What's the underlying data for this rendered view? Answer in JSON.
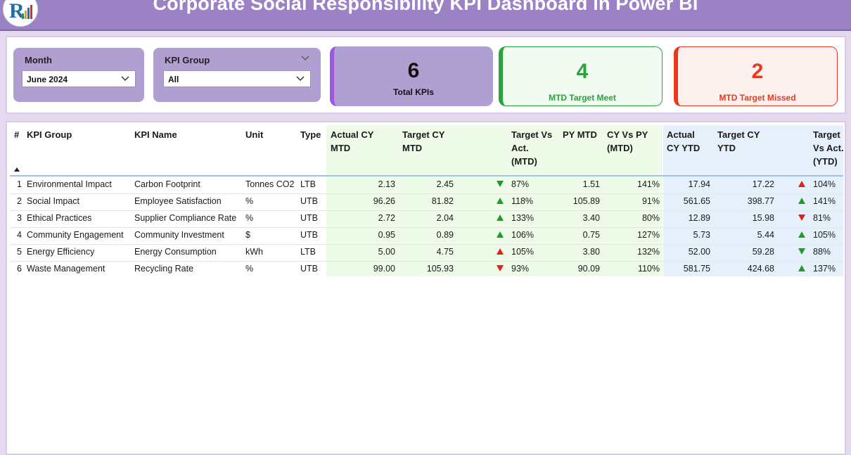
{
  "header": {
    "title": "Corporate Social Responsibility KPI Dashboard in Power BI",
    "logo_icon": "chart-logo-icon"
  },
  "slicers": {
    "month": {
      "label": "Month",
      "value": "June 2024"
    },
    "kpi_group": {
      "label": "KPI Group",
      "value": "All"
    }
  },
  "cards": {
    "total": {
      "value": "6",
      "label": "Total KPIs",
      "color": "#b09fd1"
    },
    "met": {
      "value": "4",
      "label": "MTD Target Meet",
      "color": "#2aa33a"
    },
    "missed": {
      "value": "2",
      "label": "MTD Target Missed",
      "color": "#e8391f"
    }
  },
  "table": {
    "headers": {
      "num": "#",
      "kpi_group": "KPI Group",
      "kpi_name": "KPI Name",
      "unit": "Unit",
      "type": "Type",
      "actual_mtd": [
        "Actual CY",
        "MTD"
      ],
      "target_mtd": [
        "Target CY",
        "MTD"
      ],
      "tva_mtd": [
        "Target Vs",
        "Act.",
        "(MTD)"
      ],
      "py_mtd": "PY MTD",
      "cy_vs_py": [
        "CY Vs PY",
        "(MTD)"
      ],
      "actual_ytd": [
        "Actual",
        "CY YTD"
      ],
      "target_ytd": [
        "Target CY",
        "YTD"
      ],
      "tva_ytd": [
        "Target",
        "Vs Act.",
        "(YTD)"
      ]
    },
    "rows": [
      {
        "num": "1",
        "group": "Environmental Impact",
        "name": "Carbon Footprint",
        "unit": "Tonnes CO2",
        "type": "LTB",
        "actual_mtd": "2.13",
        "target_mtd": "2.45",
        "mtd_ind": "down",
        "mtd_ind_color": "green",
        "tva_mtd": "87%",
        "py_mtd": "1.51",
        "cy_vs_py": "141%",
        "actual_ytd": "17.94",
        "target_ytd": "17.22",
        "ytd_ind": "up",
        "ytd_ind_color": "red",
        "tva_ytd": "104%"
      },
      {
        "num": "2",
        "group": "Social Impact",
        "name": "Employee Satisfaction",
        "unit": "%",
        "type": "UTB",
        "actual_mtd": "96.26",
        "target_mtd": "81.82",
        "mtd_ind": "up",
        "mtd_ind_color": "green",
        "tva_mtd": "118%",
        "py_mtd": "105.89",
        "cy_vs_py": "91%",
        "actual_ytd": "561.65",
        "target_ytd": "398.77",
        "ytd_ind": "up",
        "ytd_ind_color": "green",
        "tva_ytd": "141%"
      },
      {
        "num": "3",
        "group": "Ethical Practices",
        "name": "Supplier Compliance Rate",
        "unit": "%",
        "type": "UTB",
        "actual_mtd": "2.72",
        "target_mtd": "2.04",
        "mtd_ind": "up",
        "mtd_ind_color": "green",
        "tva_mtd": "133%",
        "py_mtd": "3.40",
        "cy_vs_py": "80%",
        "actual_ytd": "12.89",
        "target_ytd": "15.98",
        "ytd_ind": "down",
        "ytd_ind_color": "red",
        "tva_ytd": "81%"
      },
      {
        "num": "4",
        "group": "Community Engagement",
        "name": "Community Investment",
        "unit": "$",
        "type": "UTB",
        "actual_mtd": "0.95",
        "target_mtd": "0.89",
        "mtd_ind": "up",
        "mtd_ind_color": "green",
        "tva_mtd": "106%",
        "py_mtd": "0.75",
        "cy_vs_py": "127%",
        "actual_ytd": "5.73",
        "target_ytd": "5.44",
        "ytd_ind": "up",
        "ytd_ind_color": "green",
        "tva_ytd": "105%"
      },
      {
        "num": "5",
        "group": "Energy Efficiency",
        "name": "Energy Consumption",
        "unit": "kWh",
        "type": "LTB",
        "actual_mtd": "5.00",
        "target_mtd": "4.75",
        "mtd_ind": "up",
        "mtd_ind_color": "red",
        "tva_mtd": "105%",
        "py_mtd": "3.80",
        "cy_vs_py": "132%",
        "actual_ytd": "52.00",
        "target_ytd": "59.28",
        "ytd_ind": "down",
        "ytd_ind_color": "green",
        "tva_ytd": "88%"
      },
      {
        "num": "6",
        "group": "Waste Management",
        "name": "Recycling Rate",
        "unit": "%",
        "type": "UTB",
        "actual_mtd": "99.00",
        "target_mtd": "105.93",
        "mtd_ind": "down",
        "mtd_ind_color": "red",
        "tva_mtd": "93%",
        "py_mtd": "90.09",
        "cy_vs_py": "110%",
        "actual_ytd": "581.75",
        "target_ytd": "424.68",
        "ytd_ind": "up",
        "ytd_ind_color": "green",
        "tva_ytd": "137%"
      }
    ]
  }
}
